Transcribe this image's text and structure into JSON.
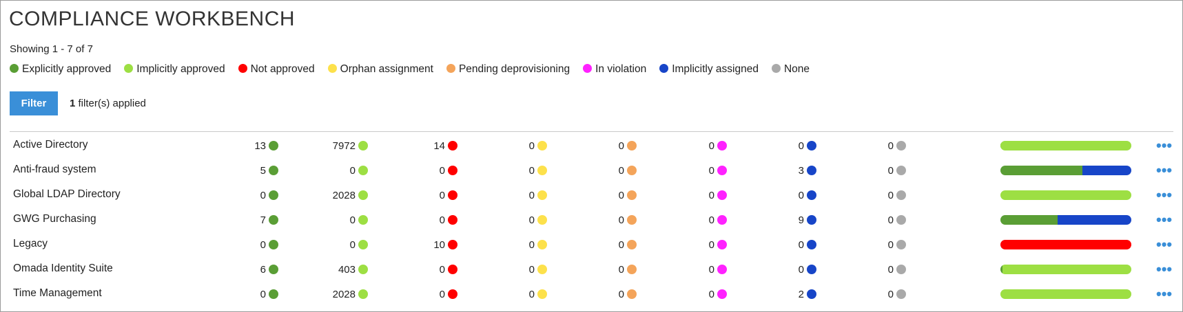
{
  "page": {
    "title": "COMPLIANCE WORKBENCH",
    "showing": "Showing 1 - 7 of 7",
    "filter_button": "Filter",
    "filters_count": "1",
    "filters_suffix": " filter(s) applied",
    "more_label": "•••"
  },
  "legend": [
    {
      "key": "explicit",
      "label": "Explicitly approved",
      "color": "#5a9e35"
    },
    {
      "key": "implicit",
      "label": "Implicitly approved",
      "color": "#9ddf43"
    },
    {
      "key": "notapproved",
      "label": "Not approved",
      "color": "#ff0000"
    },
    {
      "key": "orphan",
      "label": "Orphan assignment",
      "color": "#fde14b"
    },
    {
      "key": "pending",
      "label": "Pending deprovisioning",
      "color": "#f4a45a"
    },
    {
      "key": "violation",
      "label": "In violation",
      "color": "#ff22ff"
    },
    {
      "key": "implicitassigned",
      "label": "Implicitly assigned",
      "color": "#1745c8"
    },
    {
      "key": "none",
      "label": "None",
      "color": "#a9a9a9"
    }
  ],
  "rows": [
    {
      "name": "Active Directory",
      "counts": [
        "13",
        "7972",
        "14",
        "0",
        "0",
        "0",
        "0",
        "0"
      ]
    },
    {
      "name": "Anti-fraud system",
      "counts": [
        "5",
        "0",
        "0",
        "0",
        "0",
        "0",
        "3",
        "0"
      ]
    },
    {
      "name": "Global LDAP Directory",
      "counts": [
        "0",
        "2028",
        "0",
        "0",
        "0",
        "0",
        "0",
        "0"
      ]
    },
    {
      "name": "GWG Purchasing",
      "counts": [
        "7",
        "0",
        "0",
        "0",
        "0",
        "0",
        "9",
        "0"
      ]
    },
    {
      "name": "Legacy",
      "counts": [
        "0",
        "0",
        "10",
        "0",
        "0",
        "0",
        "0",
        "0"
      ]
    },
    {
      "name": "Omada Identity Suite",
      "counts": [
        "6",
        "403",
        "0",
        "0",
        "0",
        "0",
        "0",
        "0"
      ]
    },
    {
      "name": "Time Management",
      "counts": [
        "0",
        "2028",
        "0",
        "0",
        "0",
        "0",
        "2",
        "0"
      ]
    }
  ]
}
